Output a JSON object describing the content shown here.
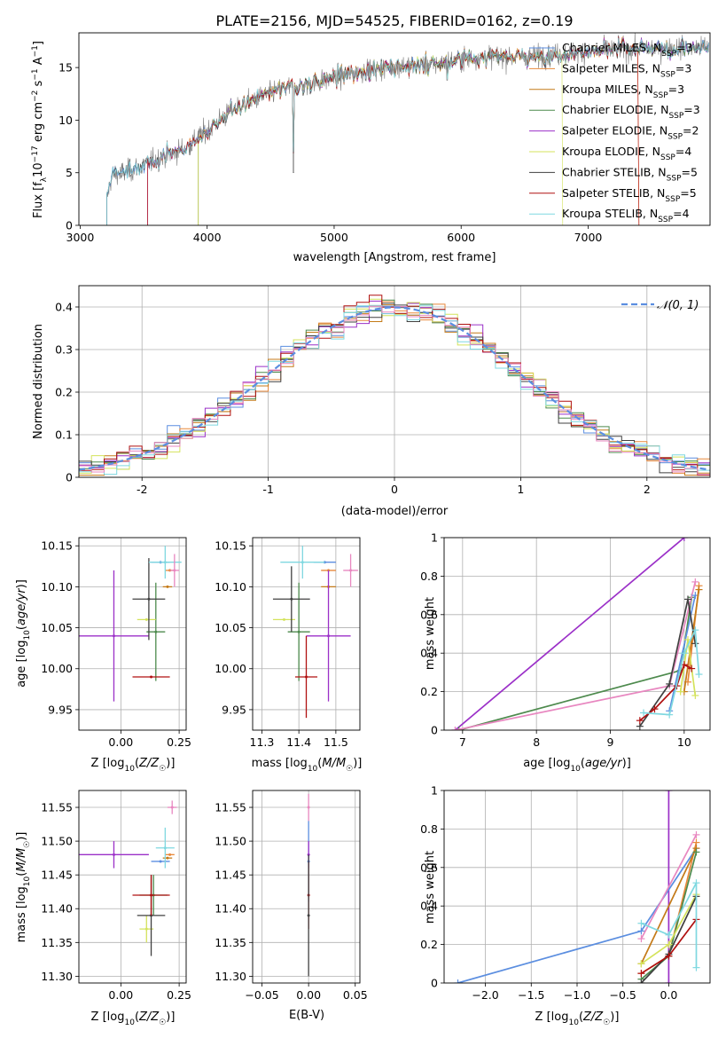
{
  "figure": {
    "title": "PLATE=2156, MJD=54525, FIBERID=0162, z=0.19"
  },
  "models": [
    {
      "name": "Chabrier MILES",
      "nssp": "3",
      "color": "#5b8ee0"
    },
    {
      "name": "Salpeter MILES",
      "nssp": "3",
      "color": "#e8883a"
    },
    {
      "name": "Kroupa MILES",
      "nssp": "3",
      "color": "#c47a18"
    },
    {
      "name": "Chabrier ELODIE",
      "nssp": "3",
      "color": "#4d8a4d"
    },
    {
      "name": "Salpeter ELODIE",
      "nssp": "2",
      "color": "#9b30c8"
    },
    {
      "name": "Kroupa ELODIE",
      "nssp": "4",
      "color": "#d4e35c"
    },
    {
      "name": "Chabrier STELIB",
      "nssp": "5",
      "color": "#404040"
    },
    {
      "name": "Salpeter STELIB",
      "nssp": "5",
      "color": "#b01010"
    },
    {
      "name": "Kroupa STELIB",
      "nssp": "4",
      "color": "#7fd8e0"
    },
    {
      "name": "",
      "nssp": "",
      "color": "#e887c0"
    }
  ],
  "chart_data": [
    {
      "id": "spectrum",
      "type": "line",
      "title": "PLATE=2156, MJD=54525, FIBERID=0162, z=0.19",
      "xlabel": "wavelength [Angstrom, rest frame]",
      "ylabel": "Flux [f_λ 10^-17 erg cm^-2 s^-1 A^-1]",
      "xlim": [
        2990,
        7960
      ],
      "ylim": [
        0,
        18.3
      ],
      "xticks": [
        3000,
        4000,
        5000,
        6000,
        7000
      ],
      "yticks": [
        0,
        5,
        10,
        15
      ],
      "legend": "upper-right",
      "legend_entries": [
        "Chabrier MILES, N_SSP=3",
        "Salpeter MILES, N_SSP=3",
        "Kroupa MILES, N_SSP=3",
        "Chabrier ELODIE, N_SSP=3",
        "Salpeter ELODIE, N_SSP=2",
        "Kroupa ELODIE, N_SSP=4",
        "Chabrier STELIB, N_SSP=5",
        "Salpeter STELIB, N_SSP=5",
        "Kroupa STELIB, N_SSP=4"
      ],
      "continuum_knots": [
        [
          3210,
          2.5
        ],
        [
          3250,
          4.8
        ],
        [
          3400,
          5.2
        ],
        [
          3550,
          6.0
        ],
        [
          3700,
          6.7
        ],
        [
          3850,
          7.5
        ],
        [
          3950,
          8.6
        ],
        [
          4000,
          9.0
        ],
        [
          4200,
          11.0
        ],
        [
          4400,
          12.1
        ],
        [
          4600,
          13.0
        ],
        [
          4800,
          13.4
        ],
        [
          5000,
          14.0
        ],
        [
          5200,
          14.6
        ],
        [
          5500,
          15.1
        ],
        [
          5800,
          15.3
        ],
        [
          6000,
          15.8
        ],
        [
          6200,
          16.0
        ],
        [
          6500,
          16.0
        ],
        [
          6800,
          16.3
        ],
        [
          7100,
          16.6
        ],
        [
          7400,
          16.8
        ],
        [
          7950,
          16.9
        ]
      ],
      "model_start_wavelengths": [
        3210,
        3530,
        3930,
        3930,
        3530,
        3930,
        3210,
        3530,
        3210
      ],
      "model_end_wavelengths": [
        7950,
        7400,
        7950,
        7950,
        7950,
        6800,
        7950,
        7400,
        7950
      ],
      "grid": false
    },
    {
      "id": "residuals",
      "type": "line",
      "xlabel": "(data-model)/error",
      "ylabel": "Normed distribution",
      "xlim": [
        -2.5,
        2.5
      ],
      "ylim": [
        0,
        0.45
      ],
      "xticks": [
        -2,
        -1,
        0,
        1,
        2
      ],
      "yticks": [
        0.0,
        0.1,
        0.2,
        0.3,
        0.4
      ],
      "legend": "upper-right",
      "legend_entries": [
        "𝒩(0, 1)"
      ],
      "reference_curve": "standard normal density",
      "bin_width": 0.1,
      "grid": true
    },
    {
      "id": "age-vs-z",
      "type": "scatter",
      "xlabel": "Z [log10(Z/Z☉)]",
      "ylabel": "age  [log10(age/yr)]",
      "xlim": [
        -0.18,
        0.28
      ],
      "ylim": [
        9.925,
        10.16
      ],
      "xticks": [
        0.0,
        0.25
      ],
      "xtick_labels": [
        "0.00",
        "0.25"
      ],
      "yticks": [
        9.95,
        10.0,
        10.05,
        10.1,
        10.15
      ],
      "ytick_labels": [
        "9.95",
        "10.00",
        "10.05",
        "10.10",
        "10.15"
      ],
      "grid": true
    },
    {
      "id": "age-vs-mass",
      "type": "scatter",
      "xlabel": "mass [log10(M/M☉)]",
      "xlim": [
        11.275,
        11.565
      ],
      "ylim": [
        9.925,
        10.16
      ],
      "xticks": [
        11.3,
        11.4,
        11.5
      ],
      "xtick_labels": [
        "11.3",
        "11.4",
        "11.5"
      ],
      "yticks": [
        9.95,
        10.0,
        10.05,
        10.1,
        10.15
      ],
      "ytick_labels": [
        "9.95",
        "10.00",
        "10.05",
        "10.10",
        "10.15"
      ],
      "grid": true
    },
    {
      "id": "weight-vs-age",
      "type": "line",
      "xlabel": "age  [log10(age/yr)]",
      "ylabel": "mass weight",
      "xlim": [
        6.75,
        10.35
      ],
      "ylim": [
        0,
        1.0
      ],
      "xticks": [
        7,
        8,
        9,
        10
      ],
      "yticks": [
        0.0,
        0.2,
        0.4,
        0.6,
        0.8,
        1.0
      ],
      "grid": true
    },
    {
      "id": "mass-vs-z",
      "type": "scatter",
      "xlabel": "Z [log10(Z/Z☉)]",
      "ylabel": "mass [log10(M/M☉)]",
      "xlim": [
        -0.18,
        0.28
      ],
      "ylim": [
        11.29,
        11.575
      ],
      "xticks": [
        0.0,
        0.25
      ],
      "xtick_labels": [
        "0.00",
        "0.25"
      ],
      "yticks": [
        11.3,
        11.35,
        11.4,
        11.45,
        11.5,
        11.55
      ],
      "ytick_labels": [
        "11.30",
        "11.35",
        "11.40",
        "11.45",
        "11.50",
        "11.55"
      ],
      "grid": true
    },
    {
      "id": "mass-vs-ebv",
      "type": "scatter",
      "xlabel": "E(B-V)",
      "xlim": [
        -0.06,
        0.055
      ],
      "ylim": [
        11.29,
        11.575
      ],
      "xticks": [
        -0.05,
        0.0,
        0.05
      ],
      "xtick_labels": [
        "−0.05",
        "0.00",
        "0.05"
      ],
      "yticks": [
        11.3,
        11.35,
        11.4,
        11.45,
        11.5,
        11.55
      ],
      "ytick_labels": [
        "11.30",
        "11.35",
        "11.40",
        "11.45",
        "11.50",
        "11.55"
      ],
      "grid": true
    },
    {
      "id": "weight-vs-z",
      "type": "line",
      "xlabel": "Z [log10(Z/Z☉)]",
      "ylabel": "mass weight",
      "xlim": [
        -2.45,
        0.45
      ],
      "ylim": [
        0,
        1.0
      ],
      "xticks": [
        -2.0,
        -1.5,
        -1.0,
        -0.5,
        0.0
      ],
      "xtick_labels": [
        "−2.0",
        "−1.5",
        "−1.0",
        "−0.5",
        "0.0"
      ],
      "yticks": [
        0.0,
        0.2,
        0.4,
        0.6,
        0.8,
        1.0
      ],
      "grid": true
    }
  ],
  "errorbars": {
    "age_z": [
      {
        "m": 0,
        "x": 0.17,
        "y": 10.13,
        "ex": 0.04,
        "ey": 0.0
      },
      {
        "m": 1,
        "x": 0.21,
        "y": 10.12,
        "ex": 0.02,
        "ey": 0.0
      },
      {
        "m": 2,
        "x": 0.2,
        "y": 10.1,
        "ex": 0.02,
        "ey": 0.0
      },
      {
        "m": 3,
        "x": 0.15,
        "y": 10.045,
        "ex": 0.04,
        "ey": 0.06
      },
      {
        "m": 4,
        "x": -0.03,
        "y": 10.04,
        "ex": 0.15,
        "ey": 0.08
      },
      {
        "m": 5,
        "x": 0.11,
        "y": 10.06,
        "ex": 0.04,
        "ey": 0.0
      },
      {
        "m": 6,
        "x": 0.12,
        "y": 10.085,
        "ex": 0.07,
        "ey": 0.05
      },
      {
        "m": 7,
        "x": 0.13,
        "y": 9.99,
        "ex": 0.08,
        "ey": 0.0
      },
      {
        "m": 8,
        "x": 0.19,
        "y": 10.13,
        "ex": 0.07,
        "ey": 0.02
      },
      {
        "m": 9,
        "x": 0.23,
        "y": 10.12,
        "ex": 0.02,
        "ey": 0.02
      }
    ],
    "age_mass": [
      {
        "m": 0,
        "x": 11.47,
        "y": 10.13,
        "ex": 0.03,
        "ey": 0.0
      },
      {
        "m": 1,
        "x": 11.48,
        "y": 10.12,
        "ex": 0.02,
        "ey": 0.0
      },
      {
        "m": 2,
        "x": 11.48,
        "y": 10.1,
        "ex": 0.02,
        "ey": 0.0
      },
      {
        "m": 3,
        "x": 11.4,
        "y": 10.045,
        "ex": 0.03,
        "ey": 0.06
      },
      {
        "m": 4,
        "x": 11.48,
        "y": 10.04,
        "ex": 0.06,
        "ey": 0.08
      },
      {
        "m": 5,
        "x": 11.36,
        "y": 10.06,
        "ex": 0.03,
        "ey": 0.0
      },
      {
        "m": 6,
        "x": 11.38,
        "y": 10.085,
        "ex": 0.05,
        "ey": 0.04
      },
      {
        "m": 7,
        "x": 11.42,
        "y": 9.99,
        "ex": 0.03,
        "ey": 0.05
      },
      {
        "m": 8,
        "x": 11.41,
        "y": 10.13,
        "ex": 0.06,
        "ey": 0.02
      },
      {
        "m": 9,
        "x": 11.54,
        "y": 10.12,
        "ex": 0.02,
        "ey": 0.02
      }
    ],
    "mass_z": [
      {
        "m": 0,
        "x": 0.17,
        "y": 11.47,
        "ex": 0.04,
        "ey": 0.0
      },
      {
        "m": 1,
        "x": 0.21,
        "y": 11.48,
        "ex": 0.02,
        "ey": 0.0
      },
      {
        "m": 2,
        "x": 0.2,
        "y": 11.475,
        "ex": 0.02,
        "ey": 0.0
      },
      {
        "m": 3,
        "x": 0.14,
        "y": 11.42,
        "ex": 0.06,
        "ey": 0.03
      },
      {
        "m": 4,
        "x": -0.03,
        "y": 11.48,
        "ex": 0.15,
        "ey": 0.02
      },
      {
        "m": 5,
        "x": 0.11,
        "y": 11.37,
        "ex": 0.03,
        "ey": 0.02
      },
      {
        "m": 6,
        "x": 0.13,
        "y": 11.39,
        "ex": 0.06,
        "ey": 0.06
      },
      {
        "m": 7,
        "x": 0.13,
        "y": 11.42,
        "ex": 0.08,
        "ey": 0.03
      },
      {
        "m": 8,
        "x": 0.19,
        "y": 11.49,
        "ex": 0.04,
        "ey": 0.03
      },
      {
        "m": 9,
        "x": 0.22,
        "y": 11.55,
        "ex": 0.02,
        "ey": 0.01
      }
    ],
    "mass_ebv": [
      {
        "m": 0,
        "x": 0.0,
        "y": 11.47,
        "ex": 0.0,
        "ey": 0.06
      },
      {
        "m": 4,
        "x": 0.0,
        "y": 11.48,
        "ex": 0.0,
        "ey": 0.02
      },
      {
        "m": 7,
        "x": 0.0,
        "y": 11.42,
        "ex": 0.0,
        "ey": 0.05
      },
      {
        "m": 6,
        "x": 0.0,
        "y": 11.39,
        "ex": 0.0,
        "ey": 0.09
      },
      {
        "m": 9,
        "x": 0.0,
        "y": 11.55,
        "ex": 0.0,
        "ey": 0.02
      }
    ]
  },
  "weights": {
    "age": [
      {
        "m": 4,
        "pts": [
          [
            6.9,
            0.0
          ],
          [
            10.0,
            1.0
          ]
        ]
      },
      {
        "m": 3,
        "pts": [
          [
            6.95,
            0.0
          ],
          [
            9.95,
            0.31
          ],
          [
            10.1,
            0.69
          ]
        ]
      },
      {
        "m": 9,
        "pts": [
          [
            6.9,
            0.0
          ],
          [
            9.8,
            0.23
          ],
          [
            10.15,
            0.77
          ]
        ]
      },
      {
        "m": 0,
        "pts": [
          [
            9.8,
            0.1
          ],
          [
            10.15,
            0.7
          ]
        ]
      },
      {
        "m": 1,
        "pts": [
          [
            10.05,
            0.25
          ],
          [
            10.2,
            0.75
          ]
        ]
      },
      {
        "m": 2,
        "pts": [
          [
            10.0,
            0.2
          ],
          [
            10.2,
            0.73
          ]
        ]
      },
      {
        "m": 5,
        "pts": [
          [
            9.95,
            0.2
          ],
          [
            10.05,
            0.47
          ],
          [
            10.15,
            0.18
          ]
        ]
      },
      {
        "m": 6,
        "pts": [
          [
            9.4,
            0.02
          ],
          [
            9.8,
            0.24
          ],
          [
            10.05,
            0.68
          ],
          [
            10.15,
            0.45
          ]
        ]
      },
      {
        "m": 7,
        "pts": [
          [
            9.4,
            0.05
          ],
          [
            9.6,
            0.11
          ],
          [
            9.9,
            0.23
          ],
          [
            10.0,
            0.34
          ],
          [
            10.1,
            0.32
          ]
        ]
      },
      {
        "m": 8,
        "pts": [
          [
            9.45,
            0.09
          ],
          [
            9.8,
            0.08
          ],
          [
            10.0,
            0.4
          ],
          [
            10.15,
            0.52
          ],
          [
            10.2,
            0.29
          ]
        ]
      }
    ],
    "z": [
      {
        "m": 4,
        "pts": [
          [
            0.0,
            1.0
          ],
          [
            0.0,
            0.0
          ]
        ]
      },
      {
        "m": 0,
        "pts": [
          [
            -2.3,
            0.0
          ],
          [
            -0.3,
            0.27
          ],
          [
            0.3,
            0.7
          ]
        ]
      },
      {
        "m": 9,
        "pts": [
          [
            -0.3,
            0.23
          ],
          [
            0.3,
            0.77
          ]
        ]
      },
      {
        "m": 1,
        "pts": [
          [
            -0.3,
            0.05
          ],
          [
            0.0,
            0.14
          ],
          [
            0.3,
            0.73
          ]
        ]
      },
      {
        "m": 2,
        "pts": [
          [
            -0.3,
            0.1
          ],
          [
            0.3,
            0.7
          ]
        ]
      },
      {
        "m": 3,
        "pts": [
          [
            -0.3,
            0.02
          ],
          [
            0.0,
            0.14
          ],
          [
            0.3,
            0.68
          ]
        ]
      },
      {
        "m": 5,
        "pts": [
          [
            -0.3,
            0.1
          ],
          [
            0.0,
            0.2
          ],
          [
            0.3,
            0.46
          ]
        ]
      },
      {
        "m": 6,
        "pts": [
          [
            -0.3,
            0.0
          ],
          [
            0.0,
            0.15
          ],
          [
            0.3,
            0.45
          ]
        ]
      },
      {
        "m": 7,
        "pts": [
          [
            -0.3,
            0.05
          ],
          [
            0.0,
            0.14
          ],
          [
            0.3,
            0.33
          ]
        ]
      },
      {
        "m": 8,
        "pts": [
          [
            -0.3,
            0.31
          ],
          [
            0.0,
            0.25
          ],
          [
            0.3,
            0.52
          ],
          [
            0.3,
            0.08
          ]
        ]
      }
    ]
  }
}
